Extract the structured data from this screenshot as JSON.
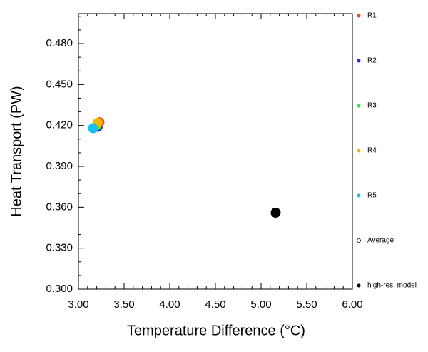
{
  "chart_data": {
    "type": "scatter",
    "x_label": "Temperature Difference (°C)",
    "y_label": "Heat Transport (PW)",
    "xlim": [
      3,
      6
    ],
    "ylim": [
      0.3,
      0.502
    ],
    "xticks": [
      {
        "value": 3,
        "label": "3.00"
      },
      {
        "value": 3.5,
        "label": "3.50"
      },
      {
        "value": 4,
        "label": "4.00"
      },
      {
        "value": 4.5,
        "label": "4.50"
      },
      {
        "value": 5,
        "label": "5.00"
      },
      {
        "value": 5.5,
        "label": "5.50"
      },
      {
        "value": 6,
        "label": "6.00"
      }
    ],
    "yticks": [
      {
        "value": 0.3,
        "label": "0.300"
      },
      {
        "value": 0.33,
        "label": "0.330"
      },
      {
        "value": 0.36,
        "label": "0.360"
      },
      {
        "value": 0.39,
        "label": "0.390"
      },
      {
        "value": 0.42,
        "label": "0.420"
      },
      {
        "value": 0.45,
        "label": "0.450"
      },
      {
        "value": 0.48,
        "label": "0.480"
      }
    ],
    "series": [
      {
        "name": "R1",
        "color": "#e8501a",
        "x": [
          3.23
        ],
        "y": [
          0.4224
        ]
      },
      {
        "name": "R2",
        "color": "#3b1ee0",
        "x": [
          3.21
        ],
        "y": [
          0.419
        ]
      },
      {
        "name": "R3",
        "color": "#2ee83a",
        "x": [
          3.2
        ],
        "y": [
          0.42
        ]
      },
      {
        "name": "R4",
        "color": "#f5b800",
        "x": [
          3.21
        ],
        "y": [
          0.422
        ]
      },
      {
        "name": "R5",
        "color": "#19bff0",
        "x": [
          3.16
        ],
        "y": [
          0.418
        ]
      },
      {
        "name": "Average",
        "color": "#000000",
        "hollow": true,
        "x": [],
        "y": []
      },
      {
        "name": "high-res. model",
        "color": "#000000",
        "x": [
          5.16
        ],
        "y": [
          0.356
        ]
      }
    ]
  }
}
